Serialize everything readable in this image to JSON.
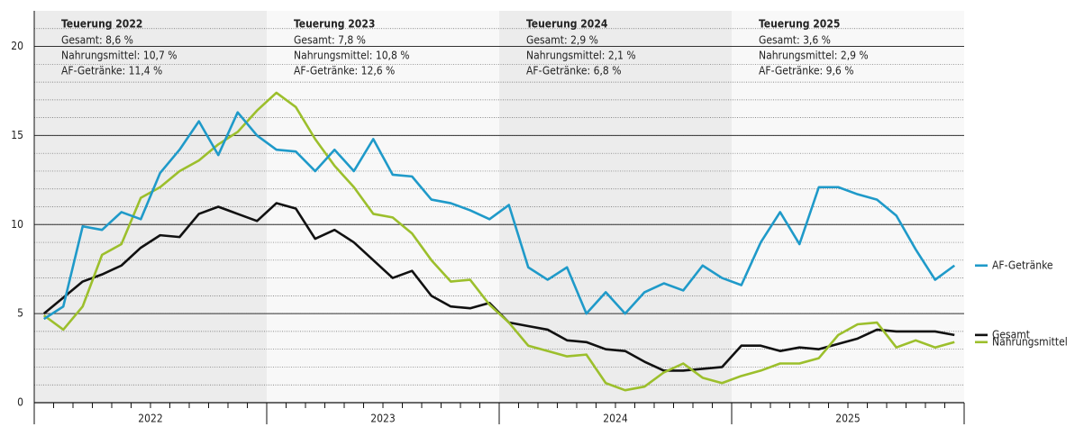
{
  "chart_data": {
    "type": "line",
    "year_labels": [
      "2022",
      "2023",
      "2024",
      "2025"
    ],
    "ylim": [
      0,
      22
    ],
    "yticks": [
      0,
      5,
      10,
      15,
      20
    ],
    "minor_grid_step": 1,
    "grid": true,
    "annotations": [
      {
        "title": "Teuerung 2022",
        "lines": [
          "Gesamt: 8,6 %",
          "Nahrungsmittel: 10,7 %",
          "AF-Getränke: 11,4 %"
        ]
      },
      {
        "title": "Teuerung 2023",
        "lines": [
          "Gesamt: 7,8 %",
          "Nahrungsmittel: 10,8 %",
          "AF-Getränke: 12,6 %"
        ]
      },
      {
        "title": "Teuerung 2024",
        "lines": [
          "Gesamt: 2,9 %",
          "Nahrungsmittel: 2,1 %",
          "AF-Getränke: 6,8 %"
        ]
      },
      {
        "title": "Teuerung 2025",
        "lines": [
          "Gesamt: 3,6 %",
          "Nahrungsmittel: 2,9 %",
          "AF-Getränke: 9,6 %"
        ]
      }
    ],
    "series": [
      {
        "name": "AF-Getränke",
        "color": "#1f9ac9",
        "values": [
          4.7,
          5.4,
          9.9,
          9.7,
          10.7,
          10.3,
          12.9,
          14.2,
          15.8,
          13.9,
          16.3,
          15.0,
          14.2,
          14.1,
          13.0,
          14.2,
          13.0,
          14.8,
          12.8,
          12.7,
          11.4,
          11.2,
          10.8,
          10.3,
          11.1,
          7.6,
          6.9,
          7.6,
          5.0,
          6.2,
          5.0,
          6.2,
          6.7,
          6.3,
          7.7,
          7.0,
          6.6,
          9.0,
          10.7,
          8.9,
          12.1,
          12.1,
          11.7,
          11.4,
          10.5,
          8.6,
          6.9,
          7.7
        ]
      },
      {
        "name": "Gesamt",
        "color": "#111111",
        "values": [
          5.0,
          5.9,
          6.8,
          7.2,
          7.7,
          8.7,
          9.4,
          9.3,
          10.6,
          11.0,
          10.6,
          10.2,
          11.2,
          10.9,
          9.2,
          9.7,
          9.0,
          8.0,
          7.0,
          7.4,
          6.0,
          5.4,
          5.3,
          5.6,
          4.5,
          4.3,
          4.1,
          3.5,
          3.4,
          3.0,
          2.9,
          2.3,
          1.8,
          1.8,
          1.9,
          2.0,
          3.2,
          3.2,
          2.9,
          3.1,
          3.0,
          3.3,
          3.6,
          4.1,
          4.0,
          4.0,
          4.0,
          3.8
        ]
      },
      {
        "name": "Nahrungsmittel",
        "color": "#9cbf2c",
        "values": [
          4.9,
          4.1,
          5.4,
          8.3,
          8.9,
          11.5,
          12.1,
          13.0,
          13.6,
          14.5,
          15.2,
          16.4,
          17.4,
          16.6,
          14.8,
          13.3,
          12.1,
          10.6,
          10.4,
          9.5,
          8.0,
          6.8,
          6.9,
          5.5,
          4.5,
          3.2,
          2.9,
          2.6,
          2.7,
          1.1,
          0.7,
          0.9,
          1.7,
          2.2,
          1.4,
          1.1,
          1.5,
          1.8,
          2.2,
          2.2,
          2.5,
          3.8,
          4.4,
          4.5,
          3.1,
          3.5,
          3.1,
          3.4
        ]
      }
    ]
  }
}
